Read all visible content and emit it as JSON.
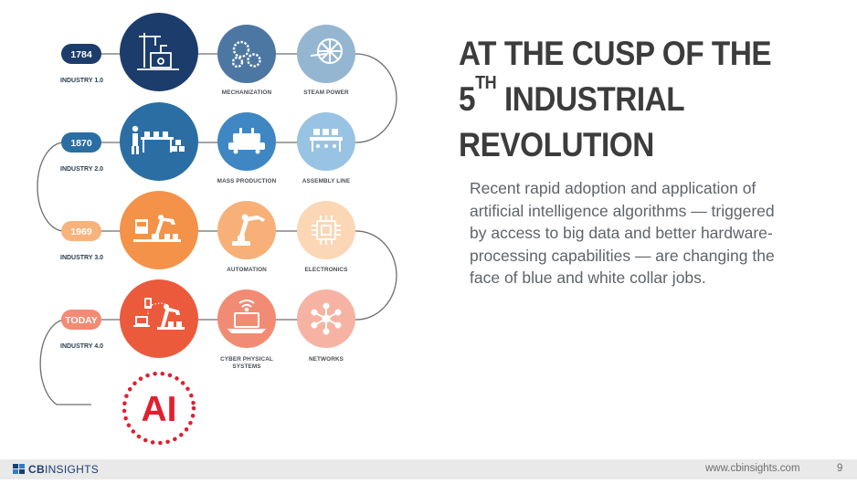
{
  "slide": {
    "title_line1": "AT THE CUSP OF THE",
    "title_line2_num": "5",
    "title_line2_sup": "TH",
    "title_line2_rest": " INDUSTRIAL",
    "title_line3": "REVOLUTION",
    "body": "Recent rapid adoption and application of artificial intelligence algorithms — triggered by access to big data and better hardware-processing capabilities — are changing the face of blue and white collar jobs."
  },
  "timeline": {
    "rows": [
      {
        "year": "1784",
        "industry": "INDUSTRY 1.0",
        "color": "#1c3d6b",
        "items": [
          {
            "label": "MECHANIZATION",
            "label2": "",
            "icon": "gears-icon",
            "color": "#4d77a3"
          },
          {
            "label": "STEAM POWER",
            "label2": "",
            "icon": "steam-wheel-icon",
            "color": "#95b6d1"
          }
        ]
      },
      {
        "year": "1870",
        "industry": "INDUSTRY 2.0",
        "color": "#2a6ea3",
        "items": [
          {
            "label": "MASS PRODUCTION",
            "label2": "",
            "icon": "mass-production-icon",
            "color": "#3f87c2"
          },
          {
            "label": "ASSEMBLY LINE",
            "label2": "",
            "icon": "assembly-line-icon",
            "color": "#98c3e3"
          }
        ]
      },
      {
        "year": "1969",
        "industry": "INDUSTRY 3.0",
        "color": "#f39248",
        "items": [
          {
            "label": "AUTOMATION",
            "label2": "",
            "icon": "robot-arm-icon",
            "color": "#f6b078"
          },
          {
            "label": "ELECTRONICS",
            "label2": "",
            "icon": "chip-icon",
            "color": "#fbd7b6"
          }
        ]
      },
      {
        "year": "TODAY",
        "industry": "INDUSTRY 4.0",
        "color": "#ec5a3c",
        "items": [
          {
            "label": "CYBER PHYSICAL",
            "label2": "SYSTEMS",
            "icon": "laptop-wifi-icon",
            "color": "#f28b73"
          },
          {
            "label": "NETWORKS",
            "label2": "",
            "icon": "network-icon",
            "color": "#f6b3a3"
          }
        ]
      }
    ],
    "ai_label": "AI",
    "ai_color": "#e0202e"
  },
  "footer": {
    "logo_bold": "CB",
    "logo_rest": "INSIGHTS",
    "site": "www.cbinsights.com",
    "page": "9"
  }
}
